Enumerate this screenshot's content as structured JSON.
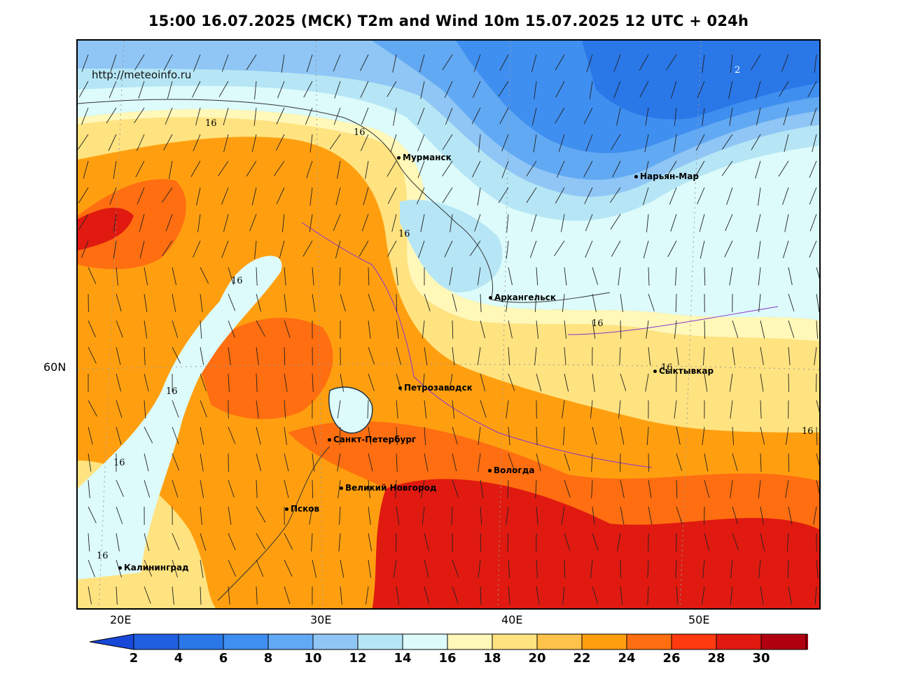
{
  "title": "15:00 16.07.2025 (МСК) T2m and Wind 10m 15.07.2025 12 UTC + 024h",
  "url": "http://meteoinfo.ru",
  "lat_labels": [
    "60N"
  ],
  "lon_labels": [
    "20E",
    "30E",
    "40E",
    "50E"
  ],
  "cities": [
    {
      "name": "Мурманск"
    },
    {
      "name": "Нарьян-Мар"
    },
    {
      "name": "Архангельск"
    },
    {
      "name": "Сыктывкар"
    },
    {
      "name": "Петрозаводск"
    },
    {
      "name": "Санкт-Петербург"
    },
    {
      "name": "Вологда"
    },
    {
      "name": "Великий Новгород"
    },
    {
      "name": "Псков"
    },
    {
      "name": "Калининград"
    }
  ],
  "isotherm_labels": [
    "16",
    "16",
    "16",
    "16",
    "16",
    "16",
    "16",
    "16",
    "16",
    "16",
    "2"
  ],
  "legend": {
    "ticks": [
      "2",
      "4",
      "6",
      "8",
      "10",
      "12",
      "14",
      "16",
      "18",
      "20",
      "22",
      "24",
      "26",
      "28",
      "30"
    ],
    "colors": [
      "#1f5fe0",
      "#2a77e8",
      "#3f8ff0",
      "#62a9f3",
      "#8fc6f5",
      "#b6e6f5",
      "#dcfbfa",
      "#fff8b8",
      "#ffe380",
      "#ffc24a",
      "#ff9f10",
      "#ff6e10",
      "#ff3a10",
      "#e01a10",
      "#b00010"
    ],
    "end_low_color": "#1848d8",
    "end_high_color": "#a00010"
  }
}
